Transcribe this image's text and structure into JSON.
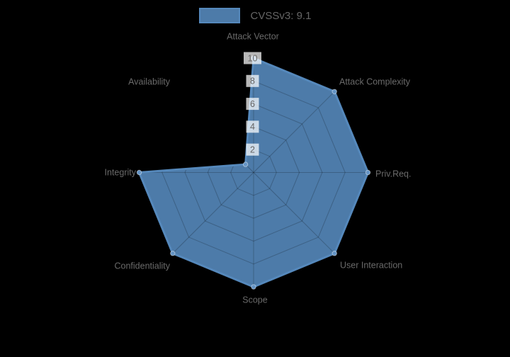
{
  "background": "#000000",
  "legend": {
    "label": "CVSSv3: 9.1",
    "text_color": "#666666"
  },
  "chart_data": {
    "type": "radar",
    "title": "CVSSv3: 9.1",
    "categories": [
      "Attack Vector",
      "Attack Complexity",
      "Priv.Req.",
      "User Interaction",
      "Scope",
      "Confidentiality",
      "Integrity",
      "Availability"
    ],
    "series": [
      {
        "name": "CVSSv3: 9.1",
        "values": [
          10,
          10,
          10,
          10,
          10,
          10,
          10,
          1
        ]
      }
    ],
    "rlim": [
      0,
      10
    ],
    "ticks": [
      2,
      4,
      6,
      8,
      10
    ],
    "grid": true,
    "legend_position": "top",
    "colors": {
      "series_fill": "rgba(85,136,187,0.9)",
      "series_border": "#5588bb",
      "point_fill": "#6494c5",
      "point_ring": "rgba(255,255,255,0.45)",
      "grid_line": "rgba(0,0,0,0.22)",
      "tick_text": "#666666",
      "tick_backdrop": "rgba(255,255,255,0.72)",
      "axis_label": "#6a6a6a"
    }
  }
}
